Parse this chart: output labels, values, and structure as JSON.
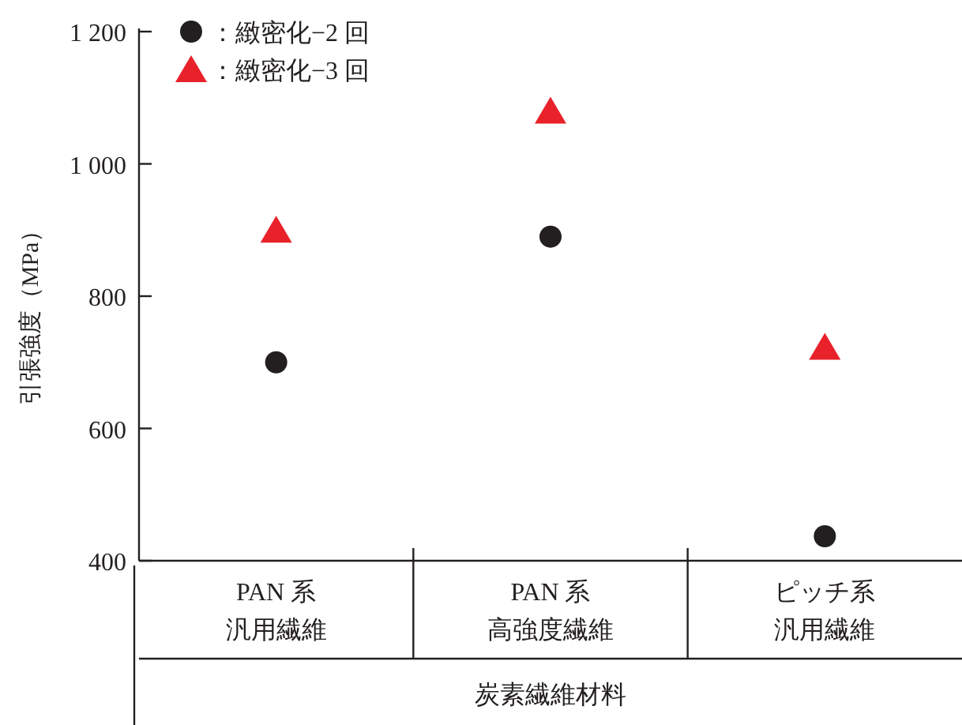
{
  "chart_data": {
    "type": "scatter",
    "ylabel": "引張強度（MPa）",
    "xlabel": "炭素繊維材料",
    "categories": [
      "PAN 系汎用繊維",
      "PAN 系高強度繊維",
      "ピッチ系汎用繊維"
    ],
    "series": [
      {
        "name": "：緻密化−2 回",
        "color": "#231f20",
        "marker": "circle",
        "values": [
          700,
          890,
          437
        ]
      },
      {
        "name": "：緻密化−3 回",
        "color": "#e8212a",
        "marker": "triangle",
        "values": [
          900,
          1080,
          723
        ]
      }
    ],
    "ylim": [
      400,
      1200
    ],
    "yticks": [
      400,
      600,
      800,
      {
        "value": 1000,
        "label": "1 000"
      },
      {
        "value": 1200,
        "label": "1 200"
      }
    ],
    "grid": false,
    "legend": "top left"
  }
}
